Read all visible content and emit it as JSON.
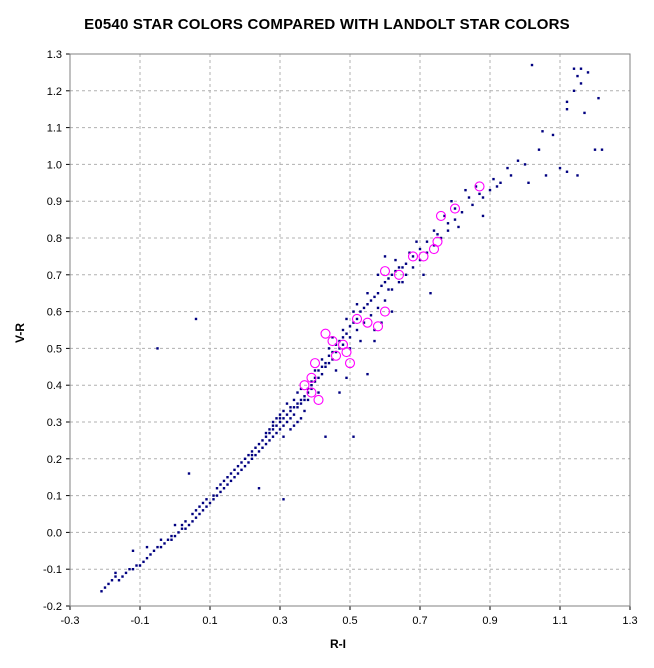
{
  "chart_data": {
    "type": "scatter",
    "title": "E0540 STAR COLORS COMPARED WITH LANDOLT STAR COLORS",
    "xlabel": "R-I",
    "ylabel": "V-R",
    "xlim": [
      -0.3,
      1.3
    ],
    "ylim": [
      -0.2,
      1.3
    ],
    "x_ticks": [
      "-0.3",
      "-0.1",
      "0.1",
      "0.3",
      "0.5",
      "0.7",
      "0.9",
      "1.1",
      "1.3"
    ],
    "y_ticks": [
      "-0.2",
      "-0.1",
      "0.0",
      "0.1",
      "0.2",
      "0.3",
      "0.4",
      "0.5",
      "0.6",
      "0.7",
      "0.8",
      "0.9",
      "1.0",
      "1.1",
      "1.2",
      "1.3"
    ],
    "grid": true,
    "colors": {
      "landolt": "#000080",
      "e0540": "#ff00ff",
      "grid": "#b0b0b0"
    },
    "series": [
      {
        "marker": "dot",
        "points": [
          [
            -0.2,
            -0.15
          ],
          [
            -0.19,
            -0.14
          ],
          [
            -0.18,
            -0.13
          ],
          [
            -0.17,
            -0.12
          ],
          [
            -0.16,
            -0.13
          ],
          [
            -0.15,
            -0.12
          ],
          [
            -0.14,
            -0.11
          ],
          [
            -0.13,
            -0.1
          ],
          [
            -0.12,
            -0.1
          ],
          [
            -0.11,
            -0.09
          ],
          [
            -0.1,
            -0.09
          ],
          [
            -0.09,
            -0.08
          ],
          [
            -0.08,
            -0.07
          ],
          [
            -0.07,
            -0.06
          ],
          [
            -0.06,
            -0.05
          ],
          [
            -0.05,
            -0.04
          ],
          [
            -0.04,
            -0.04
          ],
          [
            -0.03,
            -0.03
          ],
          [
            -0.02,
            -0.02
          ],
          [
            -0.01,
            -0.02
          ],
          [
            0.0,
            -0.01
          ],
          [
            0.01,
            0.0
          ],
          [
            0.02,
            0.01
          ],
          [
            0.03,
            0.01
          ],
          [
            0.04,
            0.02
          ],
          [
            0.05,
            0.03
          ],
          [
            0.06,
            0.04
          ],
          [
            0.07,
            0.05
          ],
          [
            0.08,
            0.06
          ],
          [
            0.09,
            0.07
          ],
          [
            0.1,
            0.08
          ],
          [
            0.11,
            0.09
          ],
          [
            0.12,
            0.1
          ],
          [
            0.13,
            0.11
          ],
          [
            0.14,
            0.12
          ],
          [
            0.15,
            0.13
          ],
          [
            0.16,
            0.14
          ],
          [
            0.17,
            0.15
          ],
          [
            0.18,
            0.16
          ],
          [
            0.19,
            0.17
          ],
          [
            0.2,
            0.18
          ],
          [
            0.21,
            0.19
          ],
          [
            0.22,
            0.2
          ],
          [
            0.23,
            0.21
          ],
          [
            0.24,
            0.22
          ],
          [
            0.25,
            0.23
          ],
          [
            0.26,
            0.24
          ],
          [
            0.27,
            0.25
          ],
          [
            0.28,
            0.26
          ],
          [
            0.29,
            0.27
          ],
          [
            0.3,
            0.28
          ],
          [
            0.31,
            0.29
          ],
          [
            0.32,
            0.3
          ],
          [
            0.33,
            0.31
          ],
          [
            0.34,
            0.32
          ],
          [
            0.35,
            0.34
          ],
          [
            0.36,
            0.35
          ],
          [
            0.37,
            0.36
          ],
          [
            0.38,
            0.38
          ],
          [
            0.39,
            0.39
          ],
          [
            0.4,
            0.41
          ],
          [
            0.41,
            0.42
          ],
          [
            0.42,
            0.43
          ],
          [
            0.43,
            0.45
          ],
          [
            0.44,
            0.46
          ],
          [
            0.45,
            0.47
          ],
          [
            0.46,
            0.49
          ],
          [
            0.47,
            0.5
          ],
          [
            0.48,
            0.51
          ],
          [
            0.5,
            0.53
          ],
          [
            0.52,
            0.55
          ],
          [
            0.54,
            0.57
          ],
          [
            0.56,
            0.59
          ],
          [
            0.58,
            0.61
          ],
          [
            0.6,
            0.63
          ],
          [
            0.62,
            0.66
          ],
          [
            0.64,
            0.68
          ],
          [
            0.66,
            0.7
          ],
          [
            0.68,
            0.72
          ],
          [
            0.7,
            0.74
          ],
          [
            0.72,
            0.76
          ],
          [
            0.74,
            0.78
          ],
          [
            0.76,
            0.8
          ],
          [
            0.78,
            0.82
          ],
          [
            0.8,
            0.85
          ],
          [
            0.82,
            0.87
          ],
          [
            0.85,
            0.89
          ],
          [
            0.88,
            0.91
          ],
          [
            0.9,
            0.93
          ],
          [
            0.93,
            0.95
          ],
          [
            0.96,
            0.97
          ],
          [
            1.0,
            1.0
          ],
          [
            1.04,
            1.04
          ],
          [
            1.08,
            1.08
          ],
          [
            1.12,
            1.15
          ],
          [
            1.14,
            1.2
          ],
          [
            1.16,
            1.22
          ],
          [
            1.18,
            1.25
          ],
          [
            1.01,
            0.95
          ],
          [
            1.06,
            0.97
          ],
          [
            -0.21,
            -0.16
          ],
          [
            -0.17,
            -0.11
          ],
          [
            -0.12,
            -0.05
          ],
          [
            -0.08,
            -0.04
          ],
          [
            -0.04,
            -0.02
          ],
          [
            0.0,
            0.02
          ],
          [
            0.05,
            0.05
          ],
          [
            0.15,
            0.15
          ],
          [
            0.22,
            0.22
          ],
          [
            0.26,
            0.26
          ],
          [
            0.28,
            0.3
          ],
          [
            0.3,
            0.31
          ],
          [
            0.31,
            0.33
          ],
          [
            0.32,
            0.35
          ],
          [
            0.33,
            0.28
          ],
          [
            0.34,
            0.29
          ],
          [
            0.35,
            0.3
          ],
          [
            0.36,
            0.31
          ],
          [
            0.37,
            0.33
          ],
          [
            0.29,
            0.31
          ],
          [
            0.28,
            0.29
          ],
          [
            0.27,
            0.27
          ],
          [
            0.3,
            0.32
          ],
          [
            0.31,
            0.26
          ],
          [
            0.33,
            0.34
          ],
          [
            0.34,
            0.36
          ],
          [
            0.35,
            0.38
          ],
          [
            0.36,
            0.39
          ],
          [
            0.38,
            0.36
          ],
          [
            0.39,
            0.41
          ],
          [
            0.4,
            0.44
          ],
          [
            0.41,
            0.38
          ],
          [
            0.42,
            0.47
          ],
          [
            0.44,
            0.5
          ],
          [
            0.45,
            0.53
          ],
          [
            0.46,
            0.44
          ],
          [
            0.48,
            0.55
          ],
          [
            0.49,
            0.58
          ],
          [
            0.5,
            0.5
          ],
          [
            0.51,
            0.6
          ],
          [
            0.52,
            0.62
          ],
          [
            0.53,
            0.52
          ],
          [
            0.55,
            0.65
          ],
          [
            0.57,
            0.55
          ],
          [
            0.58,
            0.7
          ],
          [
            0.6,
            0.75
          ],
          [
            0.61,
            0.66
          ],
          [
            0.63,
            0.74
          ],
          [
            0.65,
            0.72
          ],
          [
            0.67,
            0.76
          ],
          [
            0.69,
            0.79
          ],
          [
            0.71,
            0.7
          ],
          [
            0.73,
            0.65
          ],
          [
            0.74,
            0.82
          ],
          [
            0.77,
            0.86
          ],
          [
            0.79,
            0.9
          ],
          [
            0.81,
            0.83
          ],
          [
            0.83,
            0.93
          ],
          [
            0.86,
            0.94
          ],
          [
            0.88,
            0.86
          ],
          [
            0.91,
            0.96
          ],
          [
            0.95,
            0.99
          ],
          [
            0.98,
            1.01
          ],
          [
            1.05,
            1.09
          ],
          [
            1.1,
            0.99
          ],
          [
            1.12,
            0.98
          ],
          [
            1.17,
            1.14
          ],
          [
            1.2,
            1.04
          ],
          [
            1.22,
            1.04
          ],
          [
            1.21,
            1.18
          ],
          [
            1.02,
            1.27
          ],
          [
            1.14,
            1.26
          ],
          [
            1.15,
            1.24
          ],
          [
            1.16,
            1.26
          ],
          [
            1.12,
            1.17
          ],
          [
            1.15,
            0.97
          ],
          [
            -0.05,
            0.5
          ],
          [
            0.06,
            0.58
          ],
          [
            0.04,
            0.16
          ],
          [
            0.24,
            0.12
          ],
          [
            0.31,
            0.09
          ],
          [
            0.43,
            0.26
          ],
          [
            0.51,
            0.26
          ],
          [
            0.55,
            0.43
          ],
          [
            0.47,
            0.38
          ],
          [
            0.49,
            0.42
          ],
          [
            0.57,
            0.52
          ],
          [
            0.59,
            0.57
          ],
          [
            0.62,
            0.6
          ],
          [
            0.65,
            0.68
          ],
          [
            -0.01,
            -0.01
          ],
          [
            0.02,
            0.02
          ],
          [
            0.03,
            0.03
          ],
          [
            0.06,
            0.06
          ],
          [
            0.07,
            0.07
          ],
          [
            0.08,
            0.08
          ],
          [
            0.09,
            0.09
          ],
          [
            0.11,
            0.1
          ],
          [
            0.12,
            0.12
          ],
          [
            0.13,
            0.13
          ],
          [
            0.14,
            0.14
          ],
          [
            0.16,
            0.16
          ],
          [
            0.17,
            0.17
          ],
          [
            0.18,
            0.18
          ],
          [
            0.19,
            0.19
          ],
          [
            0.2,
            0.2
          ],
          [
            0.21,
            0.21
          ],
          [
            0.22,
            0.21
          ],
          [
            0.23,
            0.23
          ],
          [
            0.24,
            0.24
          ],
          [
            0.25,
            0.25
          ],
          [
            0.26,
            0.27
          ],
          [
            0.27,
            0.28
          ],
          [
            0.28,
            0.28
          ],
          [
            0.29,
            0.29
          ],
          [
            0.3,
            0.3
          ],
          [
            0.31,
            0.31
          ],
          [
            0.32,
            0.32
          ],
          [
            0.33,
            0.33
          ],
          [
            0.34,
            0.34
          ],
          [
            0.35,
            0.35
          ],
          [
            0.36,
            0.36
          ],
          [
            0.37,
            0.37
          ],
          [
            0.38,
            0.39
          ],
          [
            0.39,
            0.4
          ],
          [
            0.4,
            0.42
          ],
          [
            0.41,
            0.44
          ],
          [
            0.42,
            0.45
          ],
          [
            0.43,
            0.46
          ],
          [
            0.44,
            0.48
          ],
          [
            0.45,
            0.49
          ],
          [
            0.46,
            0.51
          ],
          [
            0.47,
            0.52
          ],
          [
            0.48,
            0.53
          ],
          [
            0.49,
            0.54
          ],
          [
            0.5,
            0.56
          ],
          [
            0.51,
            0.57
          ],
          [
            0.52,
            0.58
          ],
          [
            0.53,
            0.6
          ],
          [
            0.54,
            0.61
          ],
          [
            0.55,
            0.62
          ],
          [
            0.56,
            0.63
          ],
          [
            0.57,
            0.64
          ],
          [
            0.58,
            0.65
          ],
          [
            0.59,
            0.67
          ],
          [
            0.6,
            0.68
          ],
          [
            0.61,
            0.69
          ],
          [
            0.62,
            0.7
          ],
          [
            0.63,
            0.71
          ],
          [
            0.64,
            0.72
          ],
          [
            0.66,
            0.73
          ],
          [
            0.68,
            0.75
          ],
          [
            0.7,
            0.77
          ],
          [
            0.72,
            0.79
          ],
          [
            0.75,
            0.81
          ],
          [
            0.78,
            0.84
          ],
          [
            0.8,
            0.88
          ],
          [
            0.84,
            0.91
          ],
          [
            0.87,
            0.92
          ],
          [
            0.92,
            0.94
          ]
        ]
      },
      {
        "marker": "circle",
        "points": [
          [
            0.37,
            0.4
          ],
          [
            0.39,
            0.42
          ],
          [
            0.4,
            0.46
          ],
          [
            0.41,
            0.36
          ],
          [
            0.43,
            0.54
          ],
          [
            0.45,
            0.52
          ],
          [
            0.46,
            0.48
          ],
          [
            0.48,
            0.51
          ],
          [
            0.49,
            0.49
          ],
          [
            0.5,
            0.46
          ],
          [
            0.52,
            0.58
          ],
          [
            0.55,
            0.57
          ],
          [
            0.58,
            0.56
          ],
          [
            0.6,
            0.6
          ],
          [
            0.6,
            0.71
          ],
          [
            0.64,
            0.7
          ],
          [
            0.68,
            0.75
          ],
          [
            0.71,
            0.75
          ],
          [
            0.74,
            0.77
          ],
          [
            0.75,
            0.79
          ],
          [
            0.76,
            0.86
          ],
          [
            0.8,
            0.88
          ],
          [
            0.87,
            0.94
          ],
          [
            0.39,
            0.38
          ]
        ]
      }
    ]
  }
}
